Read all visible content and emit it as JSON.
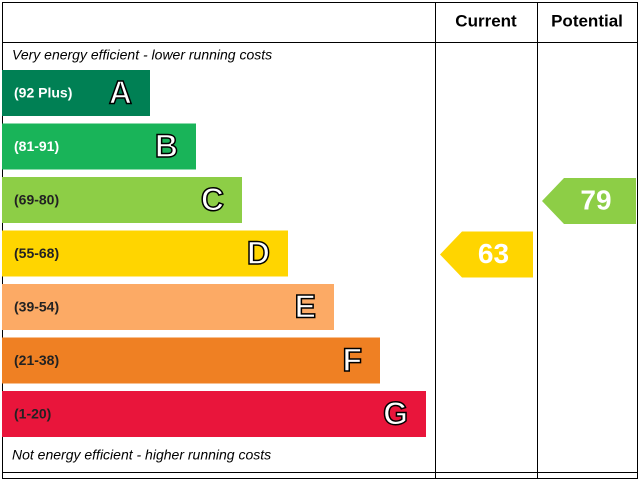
{
  "chart_data": {
    "type": "epc",
    "columns": [
      "Current",
      "Potential"
    ],
    "top_label": "Very energy efficient - lower running costs",
    "bottom_label": "Not energy efficient - higher running costs",
    "bands": [
      {
        "range": "(92 Plus)",
        "letter": "A",
        "color": "#008054"
      },
      {
        "range": "(81-91)",
        "letter": "B",
        "color": "#19b459"
      },
      {
        "range": "(69-80)",
        "letter": "C",
        "color": "#8dce46"
      },
      {
        "range": "(55-68)",
        "letter": "D",
        "color": "#ffd500"
      },
      {
        "range": "(39-54)",
        "letter": "E",
        "color": "#fcaa65"
      },
      {
        "range": "(21-38)",
        "letter": "F",
        "color": "#ef8023"
      },
      {
        "range": "(1-20)",
        "letter": "G",
        "color": "#e9153b"
      }
    ],
    "current": 63,
    "potential": 79
  }
}
